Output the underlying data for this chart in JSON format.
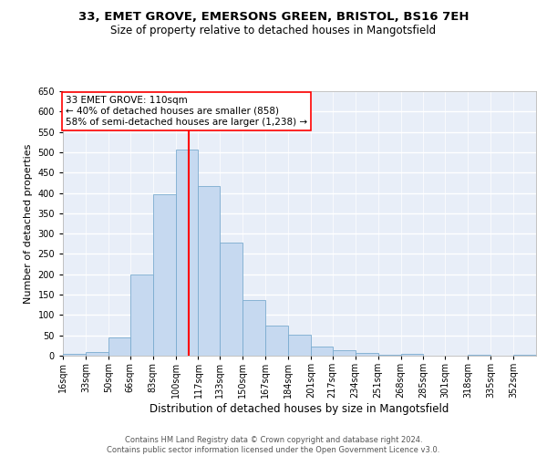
{
  "title1": "33, EMET GROVE, EMERSONS GREEN, BRISTOL, BS16 7EH",
  "title2": "Size of property relative to detached houses in Mangotsfield",
  "xlabel": "Distribution of detached houses by size in Mangotsfield",
  "ylabel": "Number of detached properties",
  "bin_labels": [
    "16sqm",
    "33sqm",
    "50sqm",
    "66sqm",
    "83sqm",
    "100sqm",
    "117sqm",
    "133sqm",
    "150sqm",
    "167sqm",
    "184sqm",
    "201sqm",
    "217sqm",
    "234sqm",
    "251sqm",
    "268sqm",
    "285sqm",
    "301sqm",
    "318sqm",
    "335sqm",
    "352sqm"
  ],
  "bar_values": [
    5,
    10,
    45,
    200,
    397,
    507,
    418,
    278,
    137,
    75,
    51,
    22,
    13,
    7,
    3,
    5,
    0,
    0,
    3,
    0,
    3
  ],
  "bar_color": "#c6d9f0",
  "bar_edgecolor": "#7aabcf",
  "vline_color": "red",
  "annotation_text": "33 EMET GROVE: 110sqm\n← 40% of detached houses are smaller (858)\n58% of semi-detached houses are larger (1,238) →",
  "annotation_box_edgecolor": "red",
  "annotation_box_facecolor": "white",
  "ylim": [
    0,
    650
  ],
  "yticks": [
    0,
    50,
    100,
    150,
    200,
    250,
    300,
    350,
    400,
    450,
    500,
    550,
    600,
    650
  ],
  "footer_text": "Contains HM Land Registry data © Crown copyright and database right 2024.\nContains public sector information licensed under the Open Government Licence v3.0.",
  "bg_color": "#e8eef8",
  "grid_color": "white",
  "title_fontsize": 9.5,
  "subtitle_fontsize": 8.5,
  "tick_fontsize": 7,
  "ylabel_fontsize": 8,
  "xlabel_fontsize": 8.5,
  "annot_fontsize": 7.5
}
